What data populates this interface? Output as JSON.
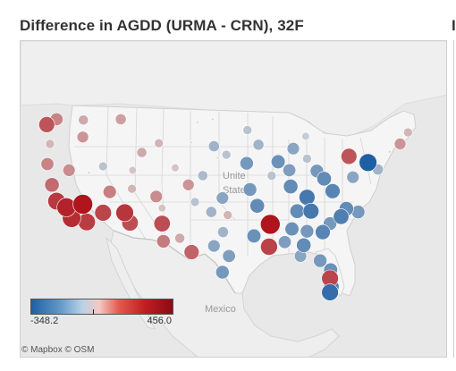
{
  "title": "Difference in AGDD (URMA - CRN), 32F",
  "right_panel_stub": "I",
  "map": {
    "country_labels": [
      {
        "text": "Unite",
        "place": "usa-1"
      },
      {
        "text": "State",
        "place": "usa-2"
      },
      {
        "text": "Mexico",
        "place": "mexico"
      }
    ],
    "attribution": "© Mapbox © OSM"
  },
  "legend": {
    "min_label": "-348.2",
    "max_label": "456.0",
    "min": -348.2,
    "max": 456.0
  },
  "colors": {
    "negative": "#1f5fa3",
    "neutral": "#d9d9d9",
    "positive": "#b0141c"
  },
  "chart_data": {
    "type": "scatter",
    "title": "Difference in AGDD (URMA - CRN), 32F",
    "value_range": [
      -348.2,
      456.0
    ],
    "points": [
      {
        "lon": -124.1,
        "lat": 46.9,
        "value": 260
      },
      {
        "lon": -122.6,
        "lat": 47.6,
        "value": 140
      },
      {
        "lon": -118.5,
        "lat": 47.5,
        "value": 60
      },
      {
        "lon": -123.6,
        "lat": 44.4,
        "value": 40
      },
      {
        "lon": -118.6,
        "lat": 45.3,
        "value": 100
      },
      {
        "lon": -112.8,
        "lat": 47.6,
        "value": 80
      },
      {
        "lon": -124.0,
        "lat": 41.8,
        "value": 140
      },
      {
        "lon": -120.7,
        "lat": 41.0,
        "value": 120
      },
      {
        "lon": -117.7,
        "lat": 40.7,
        "value": 0
      },
      {
        "lon": -115.5,
        "lat": 41.5,
        "value": -40
      },
      {
        "lon": -123.3,
        "lat": 39.1,
        "value": 200
      },
      {
        "lon": -122.6,
        "lat": 37.0,
        "value": 340
      },
      {
        "lon": -121.1,
        "lat": 36.2,
        "value": 410
      },
      {
        "lon": -118.6,
        "lat": 36.6,
        "value": 456
      },
      {
        "lon": -120.3,
        "lat": 34.8,
        "value": 380
      },
      {
        "lon": -118.0,
        "lat": 34.3,
        "value": 330
      },
      {
        "lon": -115.5,
        "lat": 35.5,
        "value": 300
      },
      {
        "lon": -112.2,
        "lat": 35.5,
        "value": 350
      },
      {
        "lon": -111.4,
        "lat": 34.2,
        "value": 280
      },
      {
        "lon": -114.5,
        "lat": 38.2,
        "value": 150
      },
      {
        "lon": -111.1,
        "lat": 38.6,
        "value": 40
      },
      {
        "lon": -111.0,
        "lat": 41.0,
        "value": 20
      },
      {
        "lon": -109.6,
        "lat": 43.3,
        "value": 60
      },
      {
        "lon": -107.0,
        "lat": 44.5,
        "value": 40
      },
      {
        "lon": -107.4,
        "lat": 37.6,
        "value": 120
      },
      {
        "lon": -106.5,
        "lat": 36.1,
        "value": 20
      },
      {
        "lon": -106.5,
        "lat": 34.1,
        "value": 280
      },
      {
        "lon": -106.3,
        "lat": 31.8,
        "value": 160
      },
      {
        "lon": -103.8,
        "lat": 32.2,
        "value": 60
      },
      {
        "lon": -102.0,
        "lat": 30.4,
        "value": 220
      },
      {
        "lon": -104.5,
        "lat": 41.3,
        "value": 20
      },
      {
        "lon": -102.1,
        "lat": 44.6,
        "value": 0
      },
      {
        "lon": -101.1,
        "lat": 47.2,
        "value": 0
      },
      {
        "lon": -98.8,
        "lat": 47.6,
        "value": 0
      },
      {
        "lon": -98.6,
        "lat": 44.1,
        "value": -80
      },
      {
        "lon": -96.7,
        "lat": 43.0,
        "value": -40
      },
      {
        "lon": -98.0,
        "lat": 42.6,
        "value": 0
      },
      {
        "lon": -100.3,
        "lat": 40.3,
        "value": -60
      },
      {
        "lon": -102.5,
        "lat": 39.1,
        "value": 100
      },
      {
        "lon": -101.5,
        "lat": 36.9,
        "value": -40
      },
      {
        "lon": -97.3,
        "lat": 37.4,
        "value": -120
      },
      {
        "lon": -99.0,
        "lat": 35.6,
        "value": -80
      },
      {
        "lon": -96.5,
        "lat": 35.2,
        "value": 40
      },
      {
        "lon": -97.2,
        "lat": 33.0,
        "value": -80
      },
      {
        "lon": -98.6,
        "lat": 31.2,
        "value": -120
      },
      {
        "lon": -96.3,
        "lat": 29.9,
        "value": -140
      },
      {
        "lon": -97.3,
        "lat": 27.8,
        "value": -160
      },
      {
        "lon": -93.5,
        "lat": 46.2,
        "value": -40
      },
      {
        "lon": -91.8,
        "lat": 44.3,
        "value": -80
      },
      {
        "lon": -93.6,
        "lat": 41.9,
        "value": -160
      },
      {
        "lon": -93.1,
        "lat": 38.5,
        "value": -160
      },
      {
        "lon": -92.0,
        "lat": 36.4,
        "value": -200
      },
      {
        "lon": -92.5,
        "lat": 32.5,
        "value": -180
      },
      {
        "lon": -90.0,
        "lat": 34.0,
        "value": 456
      },
      {
        "lon": -90.2,
        "lat": 31.1,
        "value": 310
      },
      {
        "lon": -89.8,
        "lat": 40.3,
        "value": -40
      },
      {
        "lon": -88.8,
        "lat": 42.1,
        "value": -180
      },
      {
        "lon": -87.1,
        "lat": 41.0,
        "value": -140
      },
      {
        "lon": -86.5,
        "lat": 43.8,
        "value": -120
      },
      {
        "lon": -84.6,
        "lat": 45.4,
        "value": -20
      },
      {
        "lon": -84.4,
        "lat": 42.5,
        "value": -40
      },
      {
        "lon": -82.9,
        "lat": 40.9,
        "value": -160
      },
      {
        "lon": -86.9,
        "lat": 38.9,
        "value": -200
      },
      {
        "lon": -84.4,
        "lat": 37.5,
        "value": -260
      },
      {
        "lon": -85.9,
        "lat": 35.7,
        "value": -200
      },
      {
        "lon": -83.8,
        "lat": 35.7,
        "value": -260
      },
      {
        "lon": -86.7,
        "lat": 33.4,
        "value": -180
      },
      {
        "lon": -84.4,
        "lat": 33.1,
        "value": -160
      },
      {
        "lon": -87.8,
        "lat": 31.7,
        "value": -140
      },
      {
        "lon": -84.9,
        "lat": 31.3,
        "value": -200
      },
      {
        "lon": -85.4,
        "lat": 29.9,
        "value": -120
      },
      {
        "lon": -82.4,
        "lat": 29.3,
        "value": -160
      },
      {
        "lon": -82.0,
        "lat": 33.0,
        "value": -220
      },
      {
        "lon": -80.9,
        "lat": 34.1,
        "value": -160
      },
      {
        "lon": -79.2,
        "lat": 35.0,
        "value": -240
      },
      {
        "lon": -78.4,
        "lat": 36.0,
        "value": -200
      },
      {
        "lon": -76.6,
        "lat": 35.6,
        "value": -160
      },
      {
        "lon": -80.5,
        "lat": 38.3,
        "value": -220
      },
      {
        "lon": -81.8,
        "lat": 39.9,
        "value": -200
      },
      {
        "lon": -78.0,
        "lat": 42.8,
        "value": 260
      },
      {
        "lon": -77.4,
        "lat": 40.1,
        "value": -120
      },
      {
        "lon": -75.1,
        "lat": 42.0,
        "value": -348.2
      },
      {
        "lon": -73.6,
        "lat": 41.1,
        "value": -80
      },
      {
        "lon": -71.8,
        "lat": 43.4,
        "value": 0
      },
      {
        "lon": -70.2,
        "lat": 44.4,
        "value": 100
      },
      {
        "lon": -69.0,
        "lat": 45.9,
        "value": 40
      },
      {
        "lon": -80.8,
        "lat": 28.1,
        "value": -180
      },
      {
        "lon": -80.9,
        "lat": 27.0,
        "value": 300
      },
      {
        "lon": -80.7,
        "lat": 25.9,
        "value": -240
      },
      {
        "lon": -80.9,
        "lat": 25.2,
        "value": -300
      }
    ]
  }
}
